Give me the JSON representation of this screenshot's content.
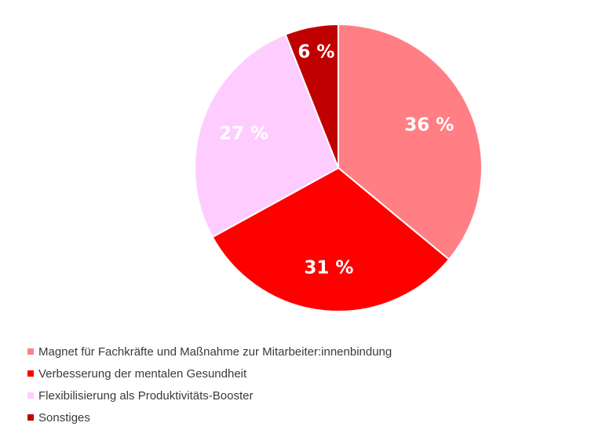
{
  "chart_data": {
    "type": "pie",
    "categories": [
      "Magnet für Fachkräfte und Maßnahme zur Mitarbeiter:innenbindung",
      "Verbesserung der mentalen Gesundheit",
      "Flexibilisierung als Produktivitäts-Booster",
      "Sonstiges"
    ],
    "values": [
      36,
      31,
      27,
      6
    ],
    "value_labels": [
      "36 %",
      "31 %",
      "27 %",
      "6 %"
    ],
    "colors": [
      "#ff7f84",
      "#ff0000",
      "#ffccff",
      "#c00000"
    ],
    "start": "top",
    "direction": "clockwise",
    "legend_placement": "bottom-left",
    "title": ""
  },
  "legend": {
    "items": [
      {
        "label": "Magnet für Fachkräfte und Maßnahme zur Mitarbeiter:innenbindung",
        "color": "#ff7f84"
      },
      {
        "label": "Verbesserung der mentalen Gesundheit",
        "color": "#ff0000"
      },
      {
        "label": "Flexibilisierung als Produktivitäts-Booster",
        "color": "#ffccff"
      },
      {
        "label": "Sonstiges",
        "color": "#c00000"
      }
    ]
  }
}
